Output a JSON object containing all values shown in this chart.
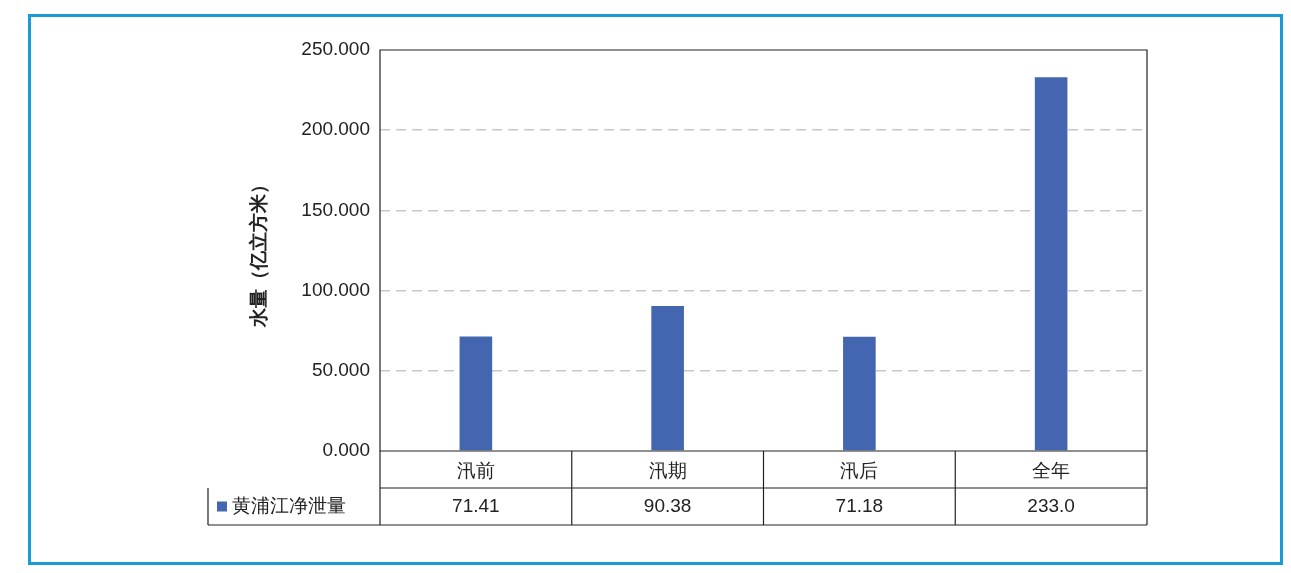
{
  "chart_data": {
    "type": "bar",
    "ylabel": "水量（亿立方米）",
    "categories": [
      "汛前",
      "汛期",
      "汛后",
      "全年"
    ],
    "series": [
      {
        "name": "黄浦江净泄量",
        "color": "#4466b0",
        "values": [
          71.41,
          90.38,
          71.18,
          233.0
        ],
        "value_labels": [
          "71.41",
          "90.38",
          "71.18",
          "233.0"
        ]
      }
    ],
    "ylim": [
      0,
      250
    ],
    "yticks": [
      {
        "value": 0,
        "label": "0.000"
      },
      {
        "value": 50,
        "label": "50.000"
      },
      {
        "value": 100,
        "label": "100.000"
      },
      {
        "value": 150,
        "label": "150.000"
      },
      {
        "value": 200,
        "label": "200.000"
      },
      {
        "value": 250,
        "label": "250.000"
      }
    ],
    "grid": "y",
    "line_style": "dashed"
  }
}
